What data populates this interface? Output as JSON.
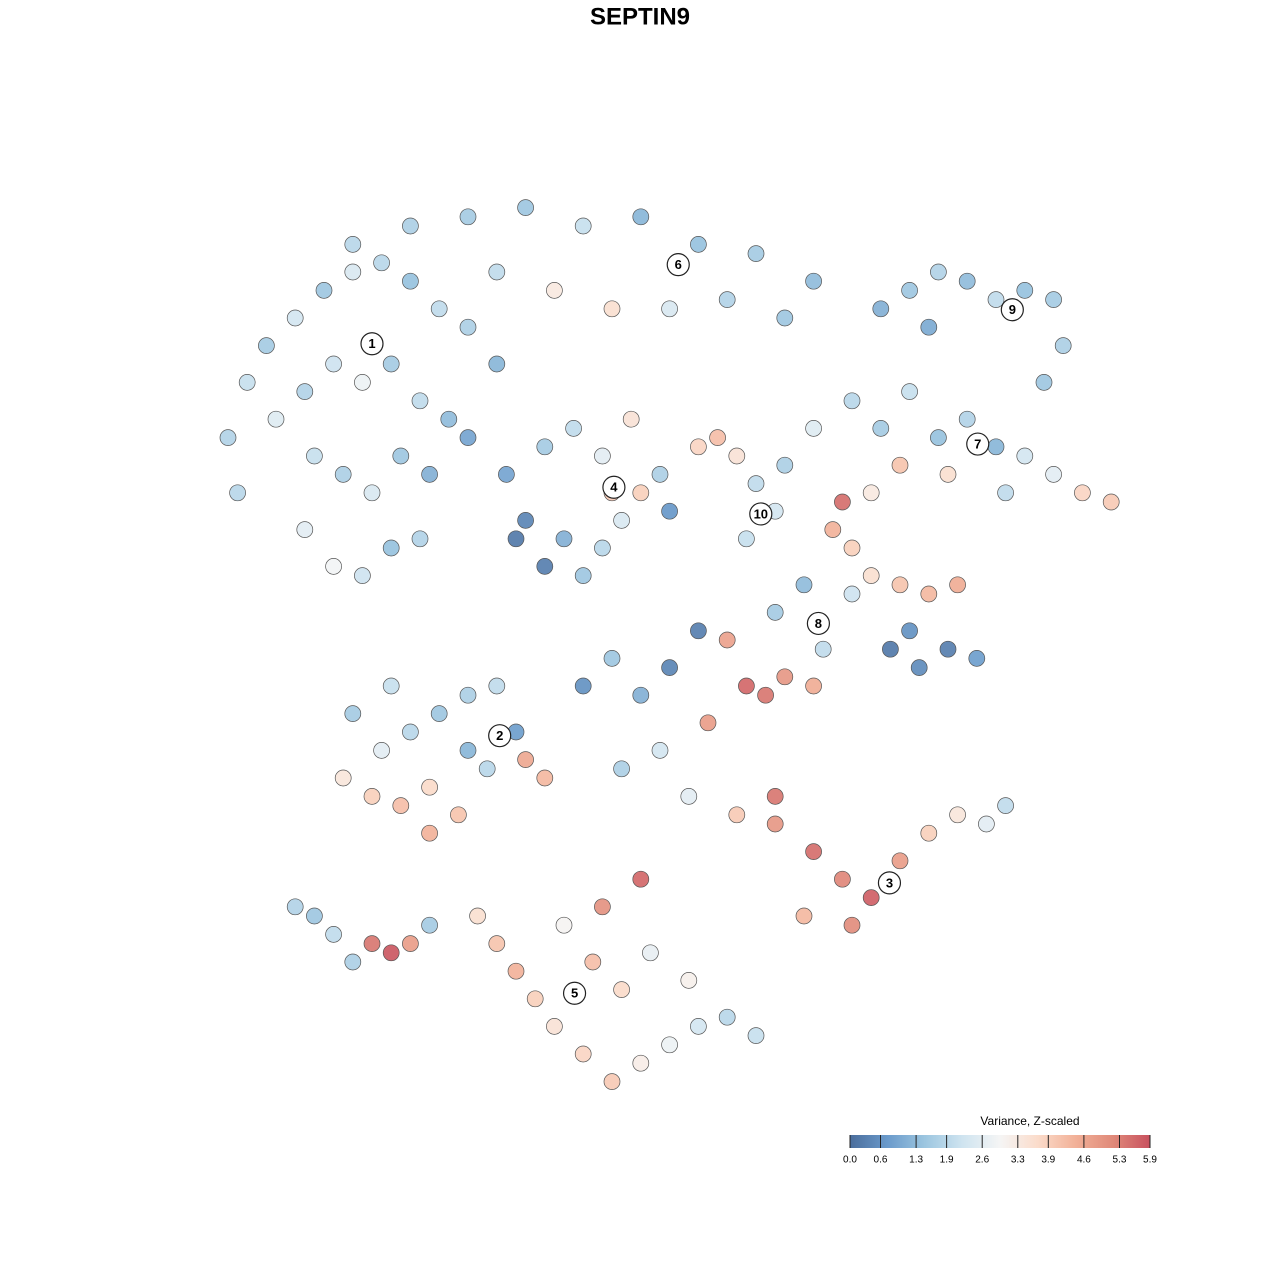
{
  "chart_data": {
    "type": "scatter",
    "title": "SEPTIN9",
    "xlim": [
      0,
      100
    ],
    "ylim": [
      0,
      100
    ],
    "colorbar_title": "Variance, Z-scaled",
    "clim": [
      0,
      5.9
    ],
    "colors": [
      "#4a6d9c",
      "#6a9acb",
      "#9cc6e0",
      "#cfe4f0",
      "#f5f5f5",
      "#fbdccb",
      "#f2b198",
      "#e08a7a",
      "#c8505e"
    ],
    "cticks": [
      {
        "value": 0,
        "label": "0.0"
      },
      0.6,
      1.3,
      1.9,
      2.6,
      3.3,
      3.9,
      4.6,
      5.3,
      5.9
    ],
    "points": [
      [
        5,
        72,
        1.8
      ],
      [
        7,
        78,
        2.1
      ],
      [
        9,
        82,
        1.6
      ],
      [
        12,
        85,
        2.3
      ],
      [
        15,
        88,
        1.5
      ],
      [
        18,
        90,
        2.4
      ],
      [
        21,
        91,
        1.9
      ],
      [
        24,
        89,
        1.4
      ],
      [
        27,
        86,
        2.0
      ],
      [
        30,
        84,
        1.7
      ],
      [
        33,
        80,
        1.2
      ],
      [
        10,
        74,
        2.5
      ],
      [
        13,
        77,
        1.8
      ],
      [
        16,
        80,
        2.2
      ],
      [
        19,
        78,
        2.8
      ],
      [
        22,
        80,
        1.6
      ],
      [
        25,
        76,
        2.0
      ],
      [
        28,
        74,
        1.3
      ],
      [
        14,
        70,
        2.1
      ],
      [
        17,
        68,
        1.7
      ],
      [
        20,
        66,
        2.4
      ],
      [
        23,
        70,
        1.5
      ],
      [
        26,
        68,
        1.1
      ],
      [
        13,
        62,
        2.6
      ],
      [
        16,
        58,
        2.9
      ],
      [
        19,
        57,
        2.2
      ],
      [
        22,
        60,
        1.4
      ],
      [
        25,
        61,
        1.8
      ],
      [
        6,
        66,
        1.9
      ],
      [
        30,
        72,
        0.9
      ],
      [
        18,
        93,
        1.9
      ],
      [
        24,
        95,
        1.7
      ],
      [
        30,
        96,
        1.6
      ],
      [
        36,
        97,
        1.5
      ],
      [
        42,
        95,
        2.1
      ],
      [
        48,
        96,
        1.2
      ],
      [
        54,
        93,
        1.4
      ],
      [
        60,
        92,
        1.6
      ],
      [
        66,
        89,
        1.3
      ],
      [
        39,
        88,
        3.3
      ],
      [
        45,
        86,
        3.6
      ],
      [
        51,
        86,
        2.4
      ],
      [
        57,
        87,
        1.8
      ],
      [
        63,
        85,
        1.5
      ],
      [
        33,
        90,
        2.0
      ],
      [
        73,
        86,
        1.1
      ],
      [
        76,
        88,
        1.5
      ],
      [
        79,
        90,
        1.8
      ],
      [
        82,
        89,
        1.3
      ],
      [
        85,
        87,
        2.0
      ],
      [
        88,
        88,
        1.4
      ],
      [
        91,
        87,
        1.6
      ],
      [
        92,
        82,
        1.7
      ],
      [
        90,
        78,
        1.5
      ],
      [
        78,
        84,
        1.0
      ],
      [
        70,
        76,
        1.9
      ],
      [
        73,
        73,
        1.6
      ],
      [
        76,
        77,
        2.1
      ],
      [
        79,
        72,
        1.4
      ],
      [
        82,
        74,
        1.8
      ],
      [
        85,
        71,
        1.2
      ],
      [
        88,
        70,
        2.3
      ],
      [
        91,
        68,
        2.6
      ],
      [
        94,
        66,
        3.8
      ],
      [
        97,
        65,
        4.0
      ],
      [
        86,
        66,
        2.0
      ],
      [
        80,
        68,
        3.6
      ],
      [
        75,
        69,
        4.1
      ],
      [
        72,
        66,
        3.3
      ],
      [
        34,
        68,
        0.9
      ],
      [
        36,
        63,
        0.4
      ],
      [
        38,
        58,
        0.3
      ],
      [
        40,
        61,
        1.1
      ],
      [
        42,
        57,
        1.5
      ],
      [
        44,
        60,
        1.9
      ],
      [
        46,
        63,
        2.4
      ],
      [
        48,
        66,
        3.9
      ],
      [
        50,
        68,
        1.7
      ],
      [
        44,
        70,
        2.6
      ],
      [
        41,
        73,
        2.0
      ],
      [
        38,
        71,
        1.6
      ],
      [
        47,
        74,
        3.5
      ],
      [
        51,
        64,
        0.7
      ],
      [
        35,
        61,
        0.2
      ],
      [
        45,
        66,
        4.0
      ],
      [
        54,
        71,
        3.8
      ],
      [
        56,
        72,
        4.2
      ],
      [
        58,
        70,
        3.5
      ],
      [
        60,
        67,
        2.0
      ],
      [
        62,
        64,
        2.3
      ],
      [
        59,
        61,
        2.1
      ],
      [
        63,
        69,
        1.7
      ],
      [
        66,
        73,
        2.5
      ],
      [
        68,
        62,
        4.4
      ],
      [
        70,
        60,
        3.9
      ],
      [
        72,
        57,
        3.6
      ],
      [
        75,
        56,
        4.1
      ],
      [
        78,
        55,
        4.3
      ],
      [
        81,
        56,
        4.5
      ],
      [
        70,
        55,
        2.2
      ],
      [
        65,
        56,
        1.3
      ],
      [
        62,
        53,
        1.6
      ],
      [
        67,
        49,
        2.0
      ],
      [
        74,
        49,
        0.2
      ],
      [
        77,
        47,
        0.5
      ],
      [
        80,
        49,
        0.3
      ],
      [
        83,
        48,
        0.8
      ],
      [
        76,
        51,
        0.6
      ],
      [
        69,
        65,
        5.5
      ],
      [
        17,
        35,
        3.4
      ],
      [
        20,
        33,
        3.9
      ],
      [
        23,
        32,
        4.2
      ],
      [
        26,
        34,
        3.7
      ],
      [
        29,
        31,
        4.1
      ],
      [
        21,
        38,
        2.6
      ],
      [
        24,
        40,
        1.9
      ],
      [
        27,
        42,
        1.5
      ],
      [
        30,
        44,
        1.7
      ],
      [
        33,
        45,
        2.0
      ],
      [
        18,
        42,
        1.6
      ],
      [
        22,
        45,
        2.1
      ],
      [
        35,
        40,
        0.8
      ],
      [
        36,
        37,
        4.6
      ],
      [
        38,
        35,
        4.3
      ],
      [
        32,
        36,
        1.9
      ],
      [
        26,
        29,
        4.4
      ],
      [
        30,
        38,
        1.2
      ],
      [
        42,
        45,
        0.6
      ],
      [
        45,
        48,
        1.5
      ],
      [
        48,
        44,
        1.1
      ],
      [
        51,
        47,
        0.4
      ],
      [
        54,
        51,
        0.3
      ],
      [
        57,
        50,
        4.7
      ],
      [
        59,
        45,
        5.6
      ],
      [
        61,
        44,
        5.4
      ],
      [
        63,
        46,
        4.9
      ],
      [
        66,
        45,
        4.5
      ],
      [
        55,
        41,
        4.8
      ],
      [
        50,
        38,
        2.3
      ],
      [
        46,
        36,
        1.7
      ],
      [
        53,
        33,
        2.6
      ],
      [
        58,
        31,
        4.0
      ],
      [
        62,
        33,
        5.4
      ],
      [
        62,
        30,
        4.9
      ],
      [
        66,
        27,
        5.5
      ],
      [
        69,
        24,
        5.2
      ],
      [
        72,
        22,
        5.7
      ],
      [
        75,
        26,
        4.8
      ],
      [
        78,
        29,
        3.9
      ],
      [
        81,
        31,
        3.4
      ],
      [
        84,
        30,
        2.6
      ],
      [
        86,
        32,
        2.0
      ],
      [
        70,
        19,
        5.1
      ],
      [
        65,
        20,
        4.3
      ],
      [
        48,
        24,
        5.6
      ],
      [
        31,
        20,
        3.6
      ],
      [
        33,
        17,
        4.1
      ],
      [
        35,
        14,
        4.4
      ],
      [
        37,
        11,
        3.9
      ],
      [
        39,
        8,
        3.5
      ],
      [
        42,
        5,
        3.8
      ],
      [
        45,
        2,
        4.0
      ],
      [
        48,
        4,
        3.2
      ],
      [
        51,
        6,
        2.8
      ],
      [
        54,
        8,
        2.3
      ],
      [
        57,
        9,
        1.9
      ],
      [
        60,
        7,
        2.1
      ],
      [
        46,
        12,
        3.7
      ],
      [
        43,
        15,
        4.2
      ],
      [
        40,
        19,
        3.0
      ],
      [
        49,
        16,
        2.7
      ],
      [
        53,
        13,
        3.1
      ],
      [
        44,
        21,
        5.0
      ],
      [
        12,
        21,
        1.8
      ],
      [
        14,
        20,
        1.5
      ],
      [
        16,
        18,
        2.0
      ],
      [
        18,
        15,
        1.7
      ],
      [
        20,
        17,
        5.4
      ],
      [
        22,
        16,
        5.8
      ],
      [
        24,
        17,
        4.8
      ],
      [
        26,
        19,
        1.6
      ]
    ],
    "labels": [
      {
        "text": "1",
        "x": 20.0,
        "y": 82.2
      },
      {
        "text": "2",
        "x": 33.3,
        "y": 39.6
      },
      {
        "text": "3",
        "x": 73.9,
        "y": 23.6
      },
      {
        "text": "4",
        "x": 45.2,
        "y": 66.6
      },
      {
        "text": "5",
        "x": 41.1,
        "y": 11.6
      },
      {
        "text": "6",
        "x": 51.9,
        "y": 90.8
      },
      {
        "text": "7",
        "x": 83.1,
        "y": 71.3
      },
      {
        "text": "8",
        "x": 66.5,
        "y": 51.8
      },
      {
        "text": "9",
        "x": 86.7,
        "y": 85.9
      },
      {
        "text": "10",
        "x": 60.5,
        "y": 63.7
      }
    ]
  }
}
